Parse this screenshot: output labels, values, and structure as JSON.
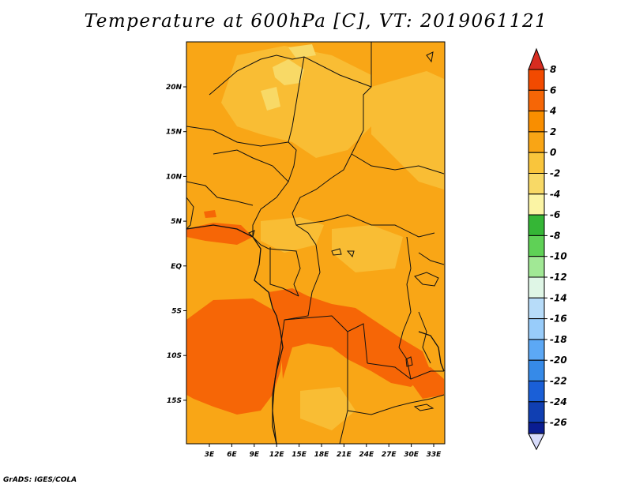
{
  "title": "Temperature at 600hPa [C], VT: 2019061121",
  "credit": "GrADS: IGES/COLA",
  "map": {
    "lat_ticks": [
      "20N",
      "15N",
      "10N",
      "5N",
      "EQ",
      "5S",
      "10S",
      "15S"
    ],
    "lon_ticks": [
      "3E",
      "6E",
      "9E",
      "12E",
      "15E",
      "18E",
      "21E",
      "24E",
      "27E",
      "30E",
      "33E"
    ]
  },
  "colorbar": {
    "labels": [
      "8",
      "6",
      "4",
      "2",
      "0",
      "-2",
      "-4",
      "-6",
      "-8",
      "-10",
      "-12",
      "-14",
      "-16",
      "-18",
      "-20",
      "-22",
      "-24",
      "-26"
    ],
    "colors": [
      "#f24a00",
      "#f66606",
      "#f98e00",
      "#f9a515",
      "#f9c53c",
      "#f8d966",
      "#fbf4a4",
      "#35b636",
      "#5fd156",
      "#a1e895",
      "#dff6e6",
      "#b7dcf9",
      "#98ccfa",
      "#5ca8f5",
      "#368ae8",
      "#1a5fd7",
      "#103fb2",
      "#0a1d92"
    ],
    "top_arrow_color": "#d62c20",
    "bottom_arrow_color": "#d8dcfb"
  }
}
